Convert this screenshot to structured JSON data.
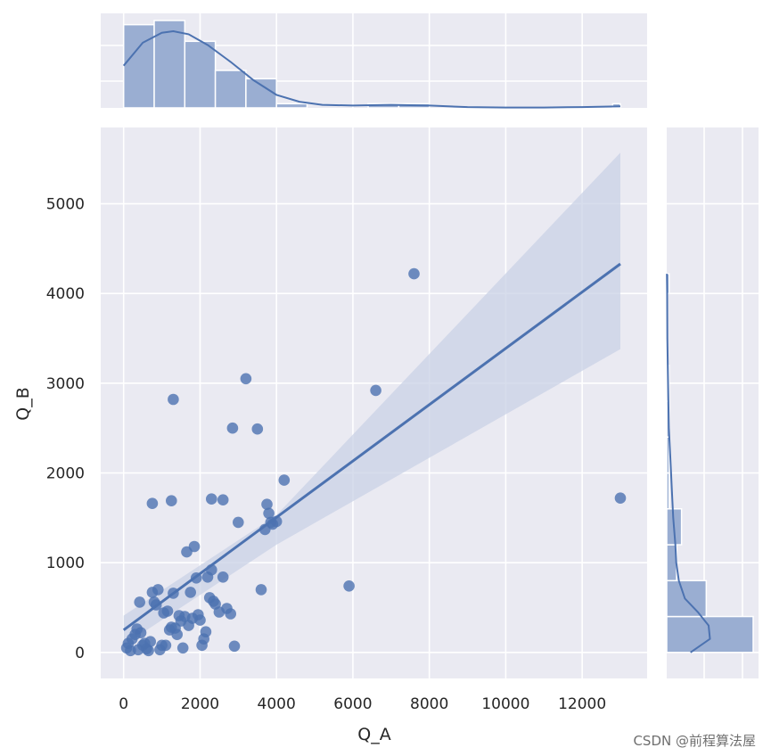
{
  "chart_data": {
    "type": "scatter",
    "xlabel": "Q_A",
    "ylabel": "Q_B",
    "xticks": [
      0,
      2000,
      4000,
      6000,
      8000,
      10000,
      12000
    ],
    "yticks": [
      0,
      1000,
      2000,
      3000,
      4000,
      5000
    ],
    "xlim": [
      -600,
      13700
    ],
    "ylim": [
      -290,
      5850
    ],
    "grid": true,
    "series": [
      {
        "x": [
          80,
          120,
          180,
          220,
          300,
          350,
          380,
          420,
          450,
          500,
          550,
          600,
          650,
          700,
          750,
          800,
          850,
          900,
          950,
          1000,
          1050,
          1100,
          1150,
          1200,
          1250,
          1300,
          1350,
          1400,
          1450,
          1500,
          1550,
          1600,
          1650,
          1700,
          1750,
          1800,
          1850,
          1900,
          1950,
          2000,
          2050,
          2100,
          2150,
          2200,
          2250,
          2300,
          2350,
          2400,
          2500,
          2600,
          2700,
          2800,
          2850,
          2900,
          3000,
          3200,
          3500,
          3600,
          3700,
          3750,
          3800,
          3850,
          3900,
          4000,
          4200,
          5900,
          6600,
          7600,
          13000,
          750,
          1250,
          1300,
          2300,
          2600
        ],
        "y": [
          50,
          100,
          20,
          150,
          200,
          260,
          30,
          560,
          220,
          80,
          100,
          40,
          20,
          120,
          670,
          560,
          530,
          700,
          30,
          80,
          440,
          80,
          460,
          250,
          280,
          660,
          270,
          200,
          410,
          350,
          50,
          400,
          1120,
          300,
          670,
          380,
          1180,
          830,
          420,
          360,
          80,
          150,
          230,
          840,
          610,
          920,
          570,
          540,
          450,
          840,
          490,
          430,
          2500,
          70,
          1450,
          3050,
          2490,
          700,
          1370,
          1650,
          1550,
          1450,
          1430,
          1460,
          1920,
          740,
          2920,
          4220,
          1720,
          1660,
          1690,
          2820,
          1710,
          1700
        ],
        "fit": {
          "x": [
            0,
            13000
          ],
          "y": [
            250,
            4330
          ]
        },
        "ci_band": {
          "x": [
            0,
            4000,
            13000
          ],
          "lower": [
            80,
            1200,
            3380
          ],
          "upper": [
            410,
            1530,
            5570
          ]
        }
      }
    ],
    "marginal_x": {
      "bins": [
        0,
        800,
        1600,
        2400,
        3200,
        4000,
        4800,
        5600,
        6400,
        7200,
        8000,
        8800,
        9600,
        10400,
        11200,
        12000,
        12800,
        13000
      ],
      "counts": [
        20,
        21,
        16,
        9,
        7,
        1,
        0,
        0,
        1,
        1,
        0,
        0,
        0,
        0,
        0,
        0,
        1
      ],
      "kde_x": [
        0,
        500,
        1000,
        1300,
        1700,
        2200,
        2800,
        3400,
        4000,
        4600,
        5200,
        6000,
        7000,
        8000,
        9000,
        10000,
        11000,
        12000,
        13000
      ],
      "kde_y": [
        0.55,
        0.85,
        0.98,
        1.0,
        0.96,
        0.82,
        0.6,
        0.36,
        0.17,
        0.08,
        0.04,
        0.03,
        0.04,
        0.03,
        0.01,
        0.005,
        0.005,
        0.01,
        0.02
      ]
    },
    "marginal_y": {
      "bins": [
        0,
        400,
        800,
        1200,
        1600,
        2000,
        2400,
        2800,
        3200,
        3600,
        4000,
        4220
      ],
      "counts": [
        35,
        16,
        4,
        6,
        1,
        1,
        1,
        1,
        0,
        0,
        1
      ],
      "kde_y": [
        0,
        150,
        300,
        450,
        600,
        800,
        1000,
        1200,
        1500,
        1800,
        2100,
        2500,
        3000,
        3500,
        4000,
        4220
      ],
      "kde_x": [
        0.55,
        1.0,
        0.97,
        0.72,
        0.42,
        0.28,
        0.22,
        0.2,
        0.15,
        0.12,
        0.09,
        0.05,
        0.03,
        0.015,
        0.01,
        0.005
      ]
    },
    "colors": {
      "main": "#4c72b0",
      "band": "#c9d2e6",
      "hist": "#9aaed2"
    }
  },
  "watermark": "CSDN @前程算法屋"
}
